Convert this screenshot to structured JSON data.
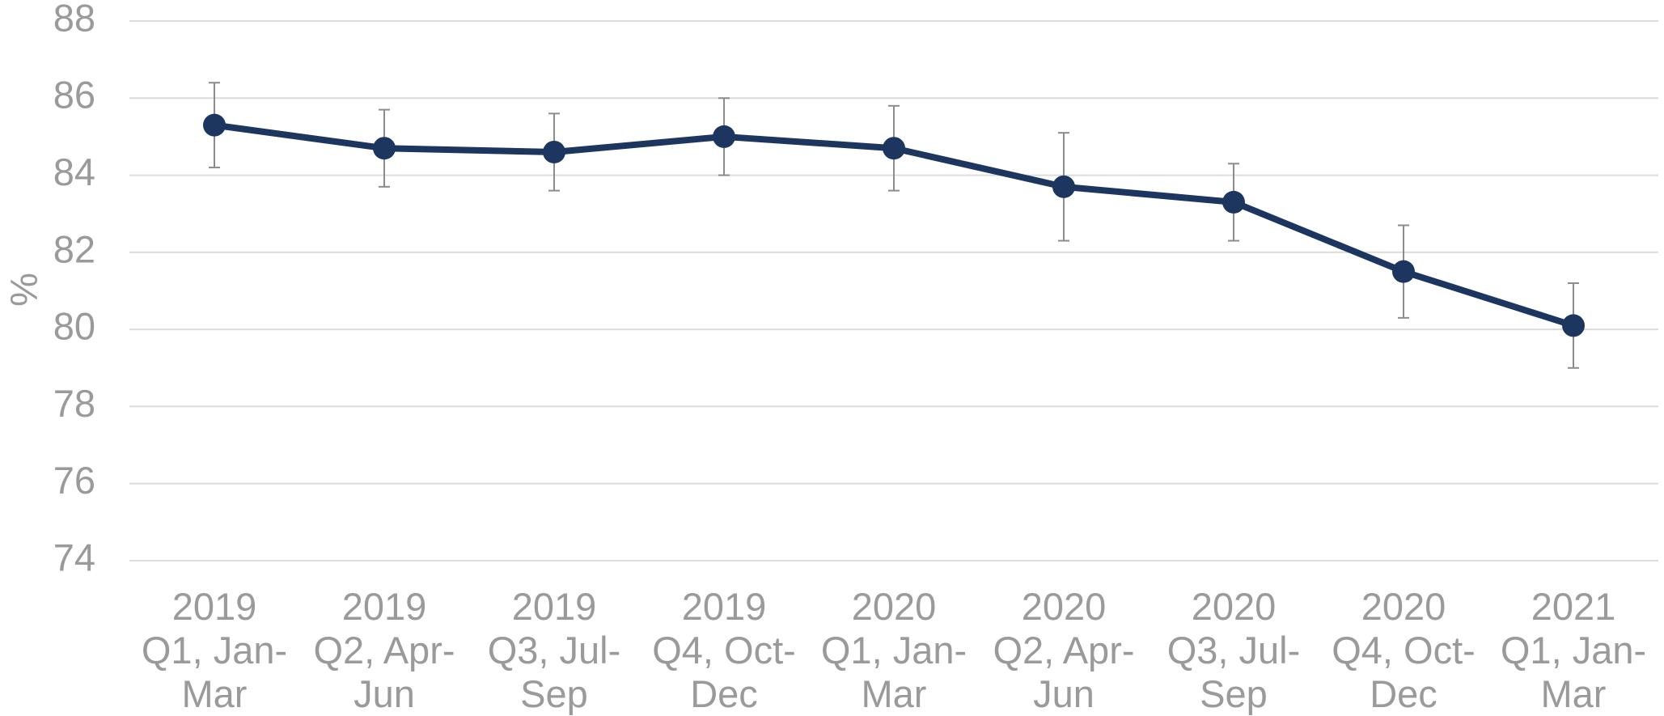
{
  "chart_data": {
    "type": "line",
    "y_label": "%",
    "categories": [
      "2019 Q1, Jan-Mar",
      "2019 Q2, Apr-Jun",
      "2019 Q3, Jul-Sep",
      "2019 Q4, Oct-Dec",
      "2020 Q1, Jan-Mar",
      "2020 Q2, Apr-Jun",
      "2020 Q3, Jul-Sep",
      "2020 Q4, Oct-Dec",
      "2021 Q1, Jan-Mar"
    ],
    "series": [
      {
        "color": "#1c3660",
        "values": [
          85.3,
          84.7,
          84.6,
          85.0,
          84.7,
          83.7,
          83.3,
          81.5,
          80.1
        ],
        "errors": [
          1.1,
          1.0,
          1.0,
          1.0,
          1.1,
          1.4,
          1.0,
          1.2,
          1.1
        ]
      }
    ],
    "ylim": [
      74,
      88
    ],
    "yticks": [
      74,
      76,
      78,
      80,
      82,
      84,
      86,
      88
    ],
    "grid": true
  }
}
